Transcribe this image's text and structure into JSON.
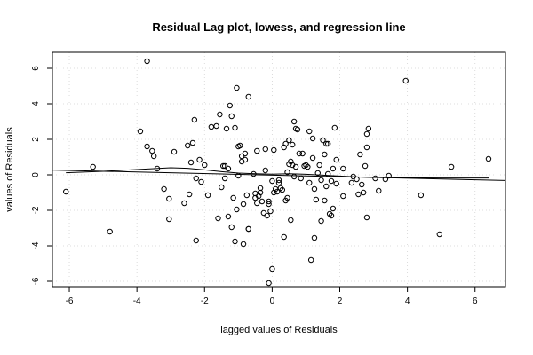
{
  "chart_data": {
    "type": "scatter",
    "title": "Residual Lag plot, lowess, and regression line",
    "xlabel": "lagged values of Residuals",
    "ylabel": "values of Residuals",
    "xlim": [
      -6.5,
      6.9
    ],
    "ylim": [
      -6.3,
      6.9
    ],
    "xticks": [
      -6,
      -4,
      -2,
      0,
      2,
      4,
      6
    ],
    "yticks": [
      -6,
      -4,
      -2,
      0,
      2,
      4,
      6
    ],
    "grid": true,
    "points": [
      [
        -6.1,
        -0.95
      ],
      [
        -5.3,
        0.45
      ],
      [
        -4.8,
        -3.2
      ],
      [
        -3.9,
        2.45
      ],
      [
        -3.7,
        6.4
      ],
      [
        -3.7,
        1.6
      ],
      [
        -3.55,
        1.35
      ],
      [
        -3.5,
        1.05
      ],
      [
        -3.4,
        0.35
      ],
      [
        -3.2,
        -0.8
      ],
      [
        -3.05,
        -2.5
      ],
      [
        -3.05,
        -1.35
      ],
      [
        -2.9,
        1.3
      ],
      [
        -2.6,
        -1.6
      ],
      [
        -2.5,
        1.65
      ],
      [
        -2.45,
        -1.1
      ],
      [
        -2.4,
        0.7
      ],
      [
        -2.35,
        1.8
      ],
      [
        -2.3,
        3.1
      ],
      [
        -2.25,
        -0.2
      ],
      [
        -2.25,
        -3.7
      ],
      [
        -2.15,
        0.85
      ],
      [
        -2.1,
        -0.4
      ],
      [
        -2.0,
        0.55
      ],
      [
        -1.9,
        -1.15
      ],
      [
        -1.8,
        2.7
      ],
      [
        -1.65,
        2.75
      ],
      [
        -1.6,
        -2.45
      ],
      [
        -1.55,
        3.4
      ],
      [
        -1.5,
        -0.7
      ],
      [
        -1.45,
        0.5
      ],
      [
        -1.4,
        -0.2
      ],
      [
        -1.4,
        0.5
      ],
      [
        -1.35,
        2.6
      ],
      [
        -1.3,
        0.35
      ],
      [
        -1.3,
        -2.35
      ],
      [
        -1.25,
        3.9
      ],
      [
        -1.2,
        3.3
      ],
      [
        -1.2,
        -2.95
      ],
      [
        -1.15,
        -1.3
      ],
      [
        -1.1,
        -3.75
      ],
      [
        -1.1,
        2.65
      ],
      [
        -1.05,
        -1.95
      ],
      [
        -1.05,
        4.9
      ],
      [
        -1.0,
        -0.05
      ],
      [
        -1.0,
        1.6
      ],
      [
        -0.95,
        1.65
      ],
      [
        -0.9,
        0.75
      ],
      [
        -0.9,
        1.05
      ],
      [
        -0.85,
        -1.65
      ],
      [
        -0.85,
        -3.9
      ],
      [
        -0.8,
        1.2
      ],
      [
        -0.8,
        0.85
      ],
      [
        -0.75,
        -1.15
      ],
      [
        -0.7,
        -3.05
      ],
      [
        -0.7,
        -3.05
      ],
      [
        -0.7,
        4.4
      ],
      [
        -0.55,
        0.05
      ],
      [
        -0.5,
        -1.05
      ],
      [
        -0.5,
        -1.3
      ],
      [
        -0.45,
        1.35
      ],
      [
        -0.45,
        -1.6
      ],
      [
        -0.4,
        -1.2
      ],
      [
        -0.35,
        -0.75
      ],
      [
        -0.35,
        -1.0
      ],
      [
        -0.3,
        -1.5
      ],
      [
        -0.25,
        -2.15
      ],
      [
        -0.2,
        1.45
      ],
      [
        -0.2,
        0.25
      ],
      [
        -0.15,
        -2.3
      ],
      [
        -0.1,
        -1.5
      ],
      [
        -0.1,
        -1.65
      ],
      [
        -0.1,
        -6.1
      ],
      [
        -0.05,
        -2.05
      ],
      [
        0.0,
        -0.35
      ],
      [
        0.0,
        -5.3
      ],
      [
        0.05,
        1.4
      ],
      [
        0.05,
        -1.0
      ],
      [
        0.1,
        -0.8
      ],
      [
        0.15,
        -0.95
      ],
      [
        0.2,
        -0.45
      ],
      [
        0.2,
        -0.3
      ],
      [
        0.25,
        -0.75
      ],
      [
        0.3,
        -0.85
      ],
      [
        0.35,
        1.55
      ],
      [
        0.35,
        -3.5
      ],
      [
        0.4,
        1.75
      ],
      [
        0.4,
        -1.45
      ],
      [
        0.45,
        0.15
      ],
      [
        0.45,
        -1.3
      ],
      [
        0.5,
        0.6
      ],
      [
        0.5,
        1.95
      ],
      [
        0.55,
        0.75
      ],
      [
        0.55,
        -2.55
      ],
      [
        0.6,
        0.55
      ],
      [
        0.6,
        1.7
      ],
      [
        0.65,
        3.0
      ],
      [
        0.65,
        -0.1
      ],
      [
        0.7,
        0.45
      ],
      [
        0.7,
        2.6
      ],
      [
        0.75,
        2.55
      ],
      [
        0.8,
        1.2
      ],
      [
        0.85,
        -0.2
      ],
      [
        0.9,
        1.2
      ],
      [
        0.95,
        0.5
      ],
      [
        1.0,
        0.55
      ],
      [
        1.05,
        0.45
      ],
      [
        1.1,
        -0.45
      ],
      [
        1.1,
        2.45
      ],
      [
        1.15,
        -4.8
      ],
      [
        1.2,
        0.95
      ],
      [
        1.2,
        2.05
      ],
      [
        1.25,
        -0.8
      ],
      [
        1.25,
        -3.55
      ],
      [
        1.3,
        -1.4
      ],
      [
        1.35,
        0.1
      ],
      [
        1.4,
        0.55
      ],
      [
        1.45,
        -0.3
      ],
      [
        1.45,
        -2.6
      ],
      [
        1.5,
        1.95
      ],
      [
        1.55,
        1.15
      ],
      [
        1.55,
        -1.45
      ],
      [
        1.6,
        -0.65
      ],
      [
        1.6,
        1.75
      ],
      [
        1.65,
        1.75
      ],
      [
        1.65,
        0.05
      ],
      [
        1.7,
        -2.2
      ],
      [
        1.75,
        -2.3
      ],
      [
        1.75,
        -0.35
      ],
      [
        1.8,
        0.35
      ],
      [
        1.8,
        -1.9
      ],
      [
        1.85,
        2.65
      ],
      [
        1.9,
        0.85
      ],
      [
        1.9,
        -0.5
      ],
      [
        2.1,
        0.35
      ],
      [
        2.1,
        -1.2
      ],
      [
        2.35,
        -0.45
      ],
      [
        2.4,
        -0.1
      ],
      [
        2.5,
        -0.25
      ],
      [
        2.55,
        -1.1
      ],
      [
        2.6,
        1.15
      ],
      [
        2.65,
        -0.55
      ],
      [
        2.7,
        -1.0
      ],
      [
        2.75,
        0.5
      ],
      [
        2.8,
        2.3
      ],
      [
        2.8,
        1.55
      ],
      [
        2.85,
        2.6
      ],
      [
        2.8,
        -2.4
      ],
      [
        3.05,
        -0.2
      ],
      [
        3.15,
        -0.9
      ],
      [
        3.35,
        -0.25
      ],
      [
        3.45,
        -0.05
      ],
      [
        3.95,
        5.3
      ],
      [
        4.4,
        -1.15
      ],
      [
        4.95,
        -3.35
      ],
      [
        5.3,
        0.45
      ],
      [
        6.4,
        0.9
      ]
    ],
    "regression_line": [
      [
        -6.5,
        0.27
      ],
      [
        6.9,
        -0.32
      ]
    ],
    "lowess": [
      [
        -6.1,
        0.12
      ],
      [
        -5.0,
        0.2
      ],
      [
        -4.0,
        0.3
      ],
      [
        -3.0,
        0.4
      ],
      [
        -2.5,
        0.37
      ],
      [
        -2.0,
        0.28
      ],
      [
        -1.5,
        0.18
      ],
      [
        -1.0,
        0.1
      ],
      [
        -0.5,
        0.06
      ],
      [
        0.0,
        0.04
      ],
      [
        0.5,
        0.06
      ],
      [
        1.0,
        0.03
      ],
      [
        1.5,
        -0.02
      ],
      [
        2.0,
        -0.07
      ],
      [
        2.5,
        -0.12
      ],
      [
        3.0,
        -0.15
      ],
      [
        4.0,
        -0.17
      ],
      [
        5.0,
        -0.18
      ],
      [
        6.4,
        -0.18
      ]
    ]
  }
}
